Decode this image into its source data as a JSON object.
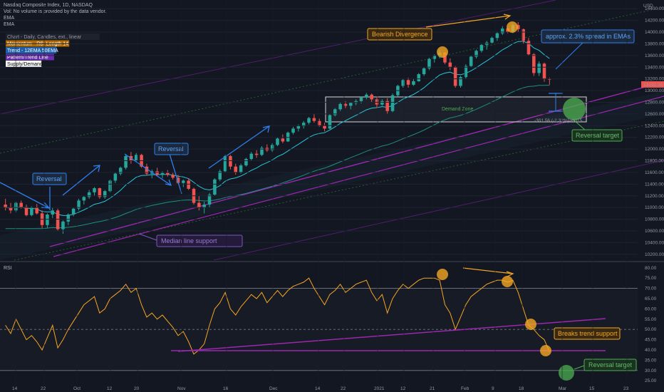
{
  "header": {
    "title": "Nasdaq Composite Index, 1D, NASDAQ",
    "vol_note": "Vol: No volume is provided by the data vendor.",
    "ema1": "EMA",
    "ema2": "EMA"
  },
  "legend": [
    {
      "label": "Chart - Daily, Candles, ext., linear",
      "color": "#9598a1",
      "bg": "#1e222d"
    },
    {
      "label": "Momentum - RSI Length 14",
      "color": "#ffffff",
      "bg": "#b36b00"
    },
    {
      "label": "Trend - 12EMA 50EMA",
      "color": "#ffffff",
      "bg": "#1c5fa8"
    },
    {
      "label": "Pattern/Trend Line",
      "color": "#ffffff",
      "bg": "#6a2fb0"
    },
    {
      "label": "Supply/Demand",
      "color": "#000000",
      "bg": "#ffffff"
    }
  ],
  "colors": {
    "up": "#26a69a",
    "down": "#ef5350",
    "ema_fast": "#26c6da",
    "ema_slow": "#1e8f7e",
    "rsi": "#f5a623",
    "trend_purple": "#9c27b0",
    "arrow_blue": "#2f80ed",
    "orange": "#f5a623",
    "green": "#4caf50"
  },
  "annotations": {
    "reversal1": "Reversal",
    "reversal2": "Reversal",
    "median": "Median line support",
    "bearish": "Bearish Divergence",
    "spread": "approx. 2.3% spread in EMAs",
    "demand": "Demand Zone",
    "measure": "-301.56 (-2.32%) -3015",
    "reversal_target": "Reversal target",
    "breaks": "Breaks trend support",
    "rsi_target": "Reversal target",
    "rsi_label": "RSI"
  },
  "price_axis": {
    "currency": "USD",
    "current_price": "13192.36",
    "ticks": [
      "14400.00",
      "14200.00",
      "14000.00",
      "13800.00",
      "13600.00",
      "13400.00",
      "13200.00",
      "13000.00",
      "12800.00",
      "12600.00",
      "12400.00",
      "12200.00",
      "12000.00",
      "11800.00",
      "11600.00",
      "11400.00",
      "11200.00",
      "11000.00",
      "10800.00",
      "10600.00",
      "10400.00",
      "10200.00"
    ]
  },
  "rsi_axis": {
    "ticks": [
      "80.00",
      "75.00",
      "70.00",
      "65.00",
      "60.00",
      "55.00",
      "50.00",
      "45.00",
      "40.00",
      "35.00",
      "30.00",
      "25.00"
    ]
  },
  "time_axis": {
    "labels": [
      "14",
      "22",
      "Oct",
      "12",
      "20",
      "Nov",
      "16",
      "Dec",
      "14",
      "22",
      "2021",
      "12",
      "21",
      "Feb",
      "9",
      "18",
      "Mar",
      "15",
      "23"
    ]
  },
  "chart_data": [
    {
      "type": "candlestick",
      "title": "Nasdaq Composite Index, 1D, NASDAQ",
      "ylim": [
        10200,
        14400
      ],
      "candles": [
        [
          11050,
          11150,
          10950,
          11000
        ],
        [
          11000,
          11080,
          10900,
          10950
        ],
        [
          10950,
          11100,
          10920,
          11080
        ],
        [
          11080,
          11120,
          10980,
          11010
        ],
        [
          11010,
          11050,
          10850,
          10870
        ],
        [
          10870,
          11020,
          10850,
          11000
        ],
        [
          11000,
          11060,
          10880,
          10900
        ],
        [
          10900,
          10950,
          10650,
          10700
        ],
        [
          10700,
          10900,
          10650,
          10880
        ],
        [
          10880,
          11000,
          10820,
          10950
        ],
        [
          10950,
          10980,
          10600,
          10630
        ],
        [
          10630,
          10780,
          10550,
          10760
        ],
        [
          10760,
          10900,
          10700,
          10880
        ],
        [
          10880,
          11000,
          10850,
          10980
        ],
        [
          10980,
          11150,
          10950,
          11120
        ],
        [
          11120,
          11200,
          11050,
          11180
        ],
        [
          11180,
          11300,
          11150,
          11260
        ],
        [
          11260,
          11350,
          11200,
          11330
        ],
        [
          11330,
          11340,
          11150,
          11180
        ],
        [
          11180,
          11300,
          11150,
          11280
        ],
        [
          11280,
          11480,
          11260,
          11460
        ],
        [
          11460,
          11600,
          11420,
          11580
        ],
        [
          11580,
          11700,
          11550,
          11680
        ],
        [
          11680,
          11900,
          11650,
          11880
        ],
        [
          11880,
          11950,
          11750,
          11800
        ],
        [
          11800,
          11930,
          11780,
          11900
        ],
        [
          11900,
          11920,
          11680,
          11700
        ],
        [
          11700,
          11750,
          11550,
          11580
        ],
        [
          11580,
          11650,
          11500,
          11620
        ],
        [
          11620,
          11680,
          11540,
          11560
        ],
        [
          11560,
          11620,
          11500,
          11590
        ],
        [
          11590,
          11640,
          11530,
          11560
        ],
        [
          11560,
          11600,
          11480,
          11510
        ],
        [
          11510,
          11560,
          11400,
          11420
        ],
        [
          11420,
          11480,
          11350,
          11460
        ],
        [
          11460,
          11500,
          11300,
          11320
        ],
        [
          11320,
          11340,
          11050,
          11080
        ],
        [
          11080,
          11200,
          10950,
          11000
        ],
        [
          11000,
          11100,
          10900,
          11050
        ],
        [
          11050,
          11250,
          11000,
          11220
        ],
        [
          11220,
          11500,
          11200,
          11480
        ],
        [
          11480,
          11650,
          11450,
          11620
        ],
        [
          11620,
          11900,
          11600,
          11880
        ],
        [
          11880,
          11900,
          11650,
          11700
        ],
        [
          11700,
          11750,
          11560,
          11600
        ],
        [
          11600,
          11750,
          11580,
          11720
        ],
        [
          11720,
          11850,
          11700,
          11830
        ],
        [
          11830,
          11950,
          11800,
          11920
        ],
        [
          11920,
          11980,
          11850,
          11900
        ],
        [
          11900,
          12050,
          11880,
          12020
        ],
        [
          12020,
          12080,
          11950,
          11980
        ],
        [
          11980,
          12100,
          11950,
          12070
        ],
        [
          12070,
          12200,
          12050,
          12180
        ],
        [
          12180,
          12250,
          12100,
          12130
        ],
        [
          12130,
          12300,
          12120,
          12280
        ],
        [
          12280,
          12380,
          12250,
          12350
        ],
        [
          12350,
          12420,
          12300,
          12390
        ],
        [
          12390,
          12480,
          12350,
          12450
        ],
        [
          12450,
          12550,
          12420,
          12530
        ],
        [
          12530,
          12600,
          12450,
          12480
        ],
        [
          12480,
          12520,
          12380,
          12400
        ],
        [
          12400,
          12450,
          12300,
          12350
        ],
        [
          12350,
          12600,
          12340,
          12580
        ],
        [
          12580,
          12700,
          12560,
          12680
        ],
        [
          12680,
          12800,
          12650,
          12770
        ],
        [
          12770,
          12820,
          12700,
          12740
        ],
        [
          12740,
          12800,
          12680,
          12790
        ],
        [
          12790,
          12850,
          12750,
          12820
        ],
        [
          12820,
          12900,
          12780,
          12880
        ],
        [
          12880,
          12960,
          12850,
          12930
        ],
        [
          12930,
          12950,
          12800,
          12850
        ],
        [
          12850,
          12900,
          12700,
          12760
        ],
        [
          12760,
          12850,
          12740,
          12820
        ],
        [
          12820,
          12870,
          12600,
          12650
        ],
        [
          12650,
          12950,
          12630,
          12920
        ],
        [
          12920,
          13100,
          12900,
          13080
        ],
        [
          13080,
          13200,
          13050,
          13180
        ],
        [
          13180,
          13220,
          13050,
          13100
        ],
        [
          13100,
          13200,
          13080,
          13160
        ],
        [
          13160,
          13300,
          13150,
          13280
        ],
        [
          13280,
          13400,
          13250,
          13380
        ],
        [
          13380,
          13560,
          13350,
          13540
        ],
        [
          13540,
          13620,
          13480,
          13600
        ],
        [
          13600,
          13700,
          13550,
          13650
        ],
        [
          13650,
          13660,
          13450,
          13480
        ],
        [
          13480,
          13550,
          13350,
          13400
        ],
        [
          13400,
          13420,
          13050,
          13080
        ],
        [
          13080,
          13250,
          13050,
          13230
        ],
        [
          13230,
          13450,
          13200,
          13420
        ],
        [
          13420,
          13600,
          13400,
          13580
        ],
        [
          13580,
          13700,
          13550,
          13680
        ],
        [
          13680,
          13800,
          13650,
          13780
        ],
        [
          13780,
          13850,
          13700,
          13820
        ],
        [
          13820,
          13920,
          13800,
          13900
        ],
        [
          13900,
          14000,
          13850,
          13980
        ],
        [
          13980,
          14100,
          13950,
          14060
        ],
        [
          14060,
          14080,
          13980,
          14000
        ],
        [
          14000,
          14150,
          13980,
          14120
        ],
        [
          14120,
          14170,
          14000,
          14050
        ],
        [
          14050,
          14060,
          13800,
          13850
        ],
        [
          13850,
          13900,
          13600,
          13620
        ],
        [
          13620,
          13640,
          13250,
          13300
        ],
        [
          13300,
          13500,
          13250,
          13460
        ],
        [
          13460,
          13480,
          13150,
          13200
        ],
        [
          13200,
          13220,
          13100,
          13192
        ]
      ],
      "ema_fast_note": "12EMA",
      "ema_slow_note": "50EMA"
    },
    {
      "type": "line",
      "title": "RSI",
      "ylim": [
        25,
        80
      ],
      "values": [
        52,
        48,
        55,
        50,
        45,
        47,
        44,
        40,
        46,
        52,
        41,
        45,
        50,
        54,
        58,
        62,
        64,
        66,
        58,
        60,
        65,
        67,
        69,
        72,
        68,
        70,
        62,
        56,
        58,
        55,
        57,
        54,
        51,
        47,
        49,
        44,
        38,
        40,
        43,
        52,
        60,
        63,
        68,
        60,
        57,
        61,
        64,
        67,
        65,
        68,
        63,
        66,
        69,
        66,
        69,
        71,
        72,
        73,
        75,
        70,
        66,
        62,
        67,
        69,
        72,
        68,
        70,
        72,
        73,
        74,
        68,
        64,
        67,
        58,
        65,
        69,
        72,
        70,
        72,
        74,
        75,
        75,
        75,
        74,
        62,
        58,
        50,
        56,
        62,
        66,
        68,
        70,
        72,
        73,
        74,
        74,
        73,
        74,
        68,
        60,
        52,
        50,
        47,
        45,
        39
      ]
    }
  ]
}
